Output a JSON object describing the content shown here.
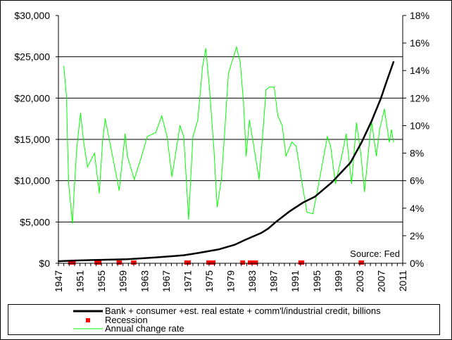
{
  "chart_data": {
    "type": "line",
    "source_note": "Source: Fed",
    "x_ticks": [
      "1947",
      "1951",
      "1955",
      "1959",
      "1963",
      "1967",
      "1971",
      "1975",
      "1979",
      "1983",
      "1987",
      "1991",
      "1995",
      "1999",
      "2003",
      "2007",
      "2011"
    ],
    "xlim": [
      1947,
      2011
    ],
    "y_left": {
      "ticks": [
        "$0",
        "$5,000",
        "$10,000",
        "$15,000",
        "$20,000",
        "$25,000",
        "$30,000"
      ],
      "ylim": [
        0,
        30000
      ]
    },
    "y_right": {
      "ticks": [
        "0%",
        "2%",
        "4%",
        "6%",
        "8%",
        "10%",
        "12%",
        "14%",
        "16%",
        "18%"
      ],
      "ylim": [
        0,
        18
      ]
    },
    "grid": "horizontal",
    "legend_position": "bottom",
    "series": [
      {
        "name": "Bank + consumer +est. real estate + comm'l/industrial credit, billions",
        "axis": "left",
        "color": "#000000",
        "x": [
          1947,
          1950,
          1955,
          1959.8,
          1965,
          1970.3,
          1973,
          1976.8,
          1979.8,
          1981.6,
          1984.7,
          1986,
          1987.3,
          1990,
          1992.5,
          1994.7,
          1997.8,
          2001.3,
          2003.4,
          2005.2,
          2006.9,
          2008,
          2009.3
        ],
        "y": [
          250,
          330,
          420,
          490,
          700,
          970,
          1250,
          1680,
          2250,
          2800,
          3670,
          4200,
          4940,
          6300,
          7360,
          8070,
          9780,
          12200,
          14700,
          17200,
          19900,
          22000,
          24400
        ]
      },
      {
        "name": "Annual change rate",
        "axis": "right",
        "color": "#00ff00",
        "x": [
          1948.0,
          1948.5,
          1948.7,
          1948.9,
          1949.6,
          1950.0,
          1950.4,
          1951.1,
          1951.7,
          1952.4,
          1953.7,
          1954.6,
          1955.2,
          1955.7,
          1956.8,
          1958.3,
          1959.4,
          1959.8,
          1961.1,
          1962.4,
          1963.5,
          1965.1,
          1966.2,
          1967.2,
          1968.1,
          1969.6,
          1970.3,
          1971.2,
          1972.0,
          1972.9,
          1973.8,
          1974.4,
          1975.1,
          1975.9,
          1976.5,
          1977.3,
          1977.9,
          1978.6,
          1980.1,
          1980.8,
          1981.4,
          1981.9,
          1982.5,
          1983.2,
          1984.3,
          1985.1,
          1985.6,
          1986.2,
          1987.1,
          1987.8,
          1988.6,
          1989.3,
          1990.4,
          1991.2,
          1992.3,
          1993.2,
          1994.3,
          1995.2,
          1996.0,
          1997.0,
          1997.6,
          1998.5,
          1999.5,
          2000.5,
          2001.5,
          2002.4,
          2003.2,
          2003.9,
          2004.8,
          2005.2,
          2006.1,
          2006.7,
          2007.6,
          2008.5,
          2008.9,
          2009.3
        ],
        "y": [
          14.3,
          12.1,
          8.7,
          5.8,
          2.9,
          5.8,
          8.3,
          10.9,
          8.8,
          7.0,
          8.0,
          5.1,
          8.8,
          10.5,
          8.3,
          5.3,
          9.4,
          7.8,
          6.1,
          7.7,
          9.2,
          9.5,
          10.7,
          9.2,
          6.3,
          10.0,
          9.2,
          3.2,
          9.2,
          10.4,
          14.3,
          15.6,
          12.6,
          8.3,
          4.1,
          6.1,
          9.5,
          13.8,
          15.7,
          14.6,
          11.7,
          7.8,
          10.4,
          8.8,
          6.1,
          10.0,
          12.6,
          12.8,
          12.8,
          10.7,
          10.0,
          7.8,
          8.8,
          8.5,
          5.8,
          3.7,
          3.6,
          5.4,
          7.1,
          9.2,
          8.5,
          5.8,
          7.5,
          9.4,
          5.8,
          10.2,
          8.0,
          5.2,
          8.8,
          10.3,
          7.8,
          9.7,
          11.2,
          8.8,
          9.7,
          8.8
        ]
      },
      {
        "name": "Recession",
        "axis": "marker",
        "color": "#ff0000",
        "periods": [
          [
            1948.8,
            1950.2
          ],
          [
            1953.7,
            1955.0
          ],
          [
            1957.8,
            1958.8
          ],
          [
            1960.5,
            1961.5
          ],
          [
            1970.4,
            1971.6
          ],
          [
            1974.5,
            1976.2
          ],
          [
            1980.8,
            1981.7
          ],
          [
            1982.2,
            1984.1
          ],
          [
            1991.6,
            1992.7
          ],
          [
            2002.8,
            2003.8
          ]
        ]
      }
    ]
  },
  "legend": [
    {
      "label": "Bank + consumer +est. real estate + comm'l/industrial credit, billions",
      "symbol": "line",
      "color": "#000000"
    },
    {
      "label": "Recession",
      "symbol": "square",
      "color": "#ff0000"
    },
    {
      "label": "Annual change rate",
      "symbol": "thin-line",
      "color": "#00ff00"
    }
  ]
}
